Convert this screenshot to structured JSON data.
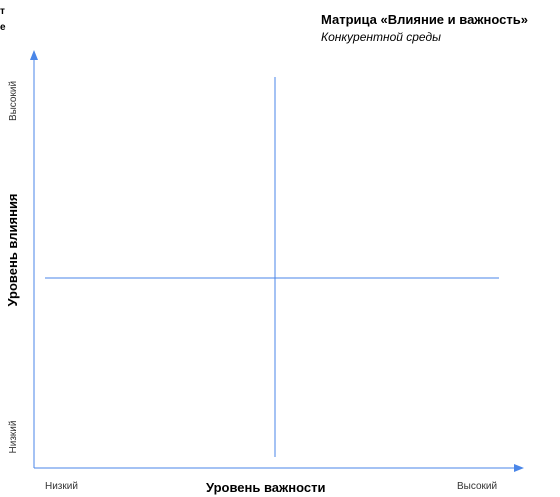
{
  "corner_text": "т\nе",
  "title": "Матрица «Влияние и важность»",
  "subtitle": "Конкурентной среды",
  "y_axis": {
    "title": "Уровень влияния",
    "tick_high": "Высокий",
    "tick_low": "Низкий"
  },
  "x_axis": {
    "title": "Уровень важности",
    "tick_low": "Низкий",
    "tick_high": "Высокий"
  },
  "colors": {
    "axis": "#4a86e8"
  }
}
